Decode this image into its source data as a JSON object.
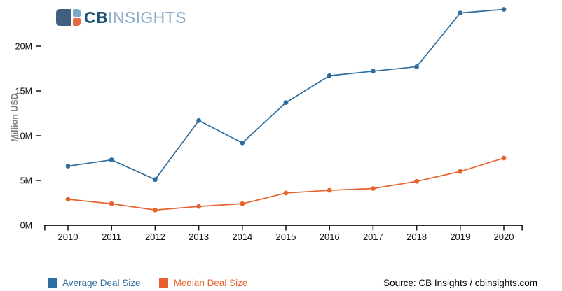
{
  "logo": {
    "text_bold": "CB",
    "text_light": "INSIGHTS",
    "colors": {
      "text_bold": "#1d5379",
      "text_light": "#8badcb",
      "icon_dark": "#41607f",
      "icon_light_blue": "#7ea9cb",
      "icon_orange": "#e26c43"
    }
  },
  "chart_data": {
    "type": "line",
    "x": [
      2010,
      2011,
      2012,
      2013,
      2014,
      2015,
      2016,
      2017,
      2018,
      2019,
      2020
    ],
    "series": [
      {
        "name": "Average Deal Size",
        "color": "#2e6e9e",
        "values": [
          6.6,
          7.3,
          5.1,
          11.7,
          9.2,
          13.7,
          16.7,
          17.2,
          17.7,
          23.7,
          24.1
        ]
      },
      {
        "name": "Median Deal Size",
        "color": "#e8612c",
        "values": [
          2.9,
          2.4,
          1.7,
          2.1,
          2.4,
          3.6,
          3.9,
          4.1,
          4.9,
          6.0,
          7.5
        ]
      }
    ],
    "title": "",
    "xlabel": "",
    "ylabel": "Million USD",
    "yticks": [
      0,
      5,
      10,
      15,
      20
    ],
    "ytick_labels": [
      "0M",
      "5M",
      "10M",
      "15M",
      "20M"
    ],
    "xtick_labels": [
      "2010",
      "2011",
      "2012",
      "2013",
      "2014",
      "2015",
      "2016",
      "2017",
      "2018",
      "2019",
      "2020"
    ],
    "ylim": [
      0,
      25.2
    ],
    "grid": false,
    "markers": true,
    "legend_position": "bottom-left",
    "axis_color": "#111111",
    "tick_label_color": "#111111"
  },
  "source_text": "Source: CB Insights / cbinsights.com"
}
